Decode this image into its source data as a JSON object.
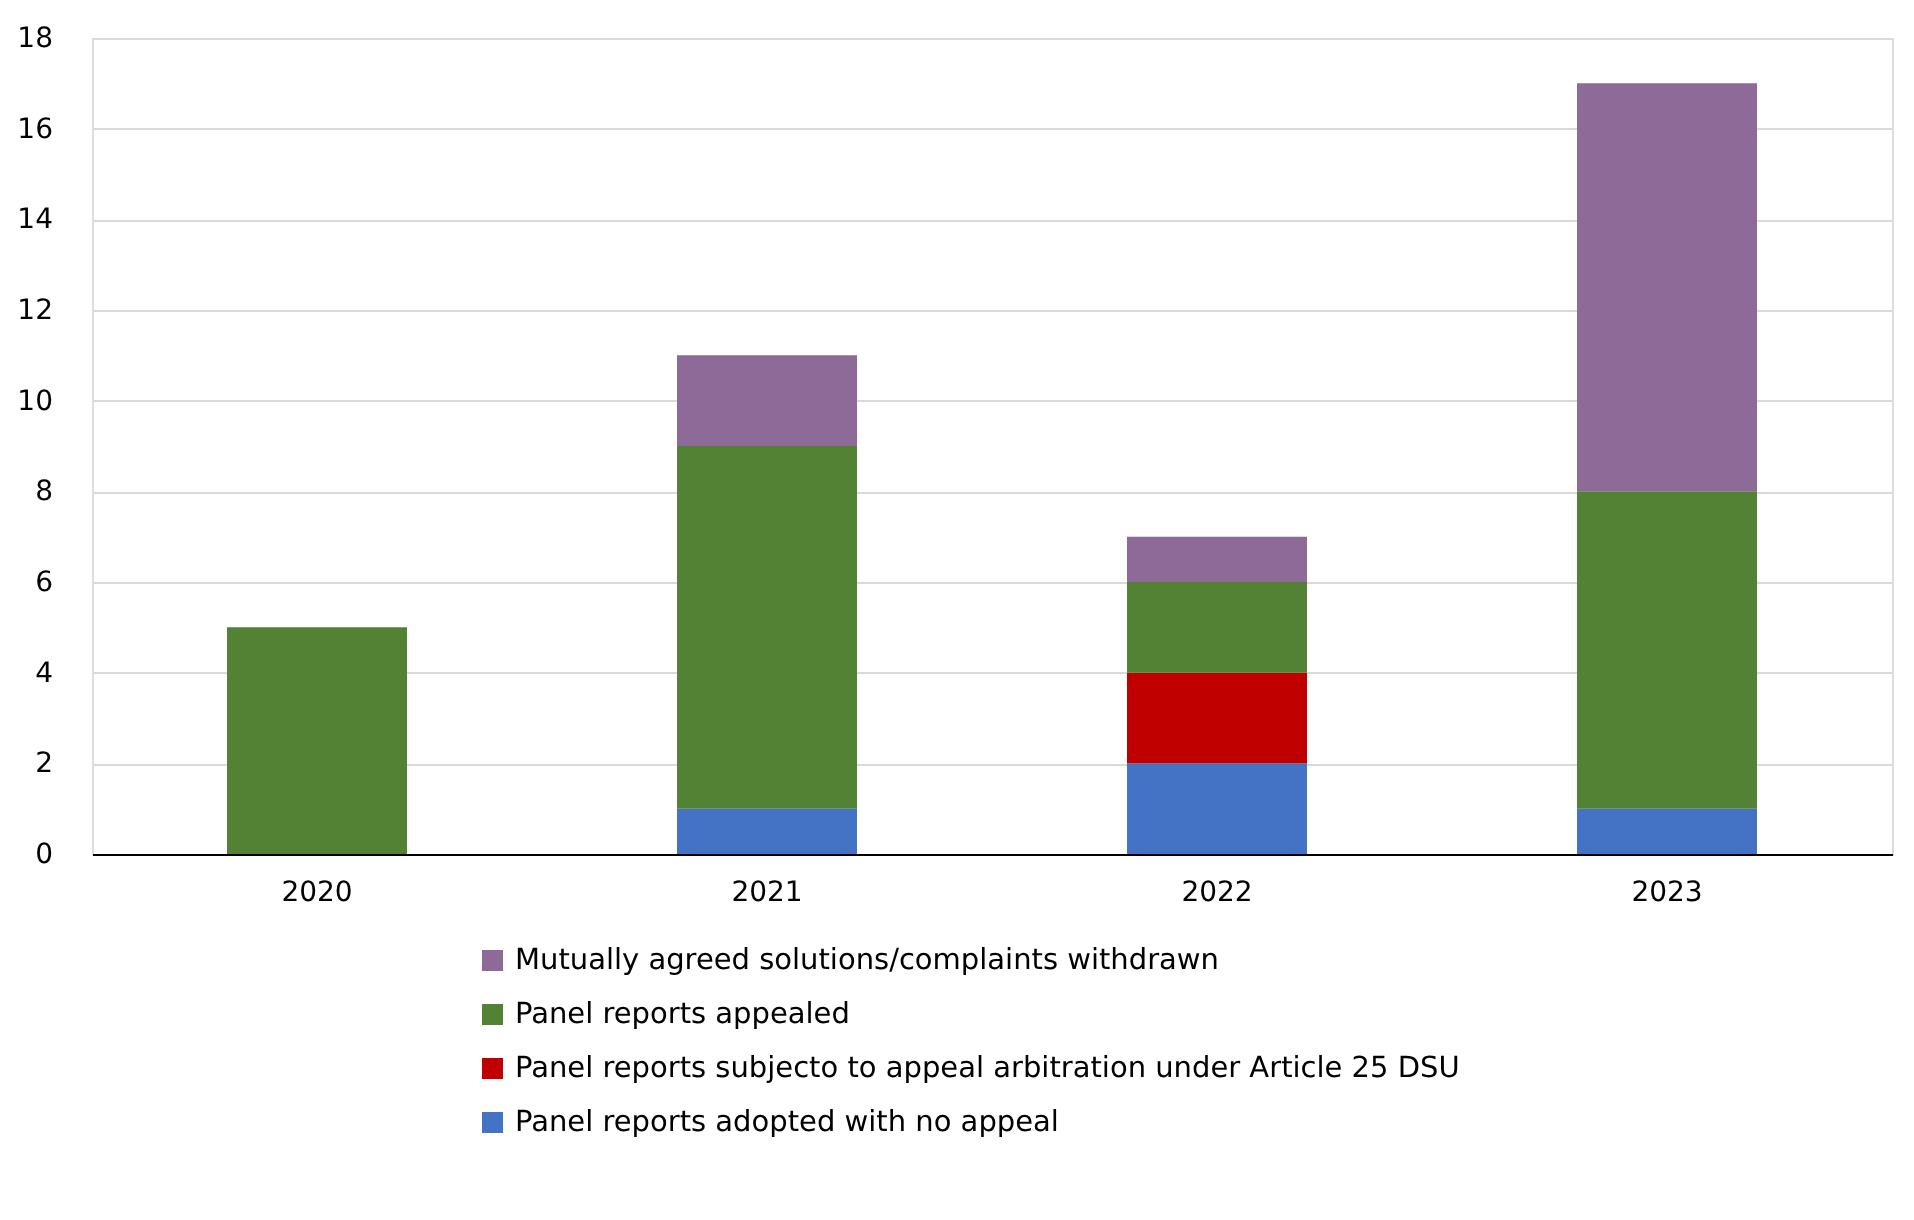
{
  "chart_data": {
    "type": "bar",
    "stacked": true,
    "categories": [
      "2020",
      "2021",
      "2022",
      "2023"
    ],
    "series": [
      {
        "name": "Panel reports adopted with no appeal",
        "color": "#4472c4",
        "values": [
          0,
          1,
          2,
          1
        ]
      },
      {
        "name": "Panel reports subjecto to appeal arbitration under Article 25 DSU",
        "color": "#c00000",
        "values": [
          0,
          0,
          2,
          0
        ]
      },
      {
        "name": "Panel reports appealed",
        "color": "#548235",
        "values": [
          5,
          8,
          2,
          7
        ]
      },
      {
        "name": "Mutually agreed solutions/complaints withdrawn",
        "color": "#8e6a99",
        "values": [
          0,
          2,
          1,
          9
        ]
      }
    ],
    "ylim": [
      0,
      18
    ],
    "yticks": [
      0,
      2,
      4,
      6,
      8,
      10,
      12,
      14,
      16,
      18
    ],
    "grid": "y",
    "legend": "bottom"
  }
}
